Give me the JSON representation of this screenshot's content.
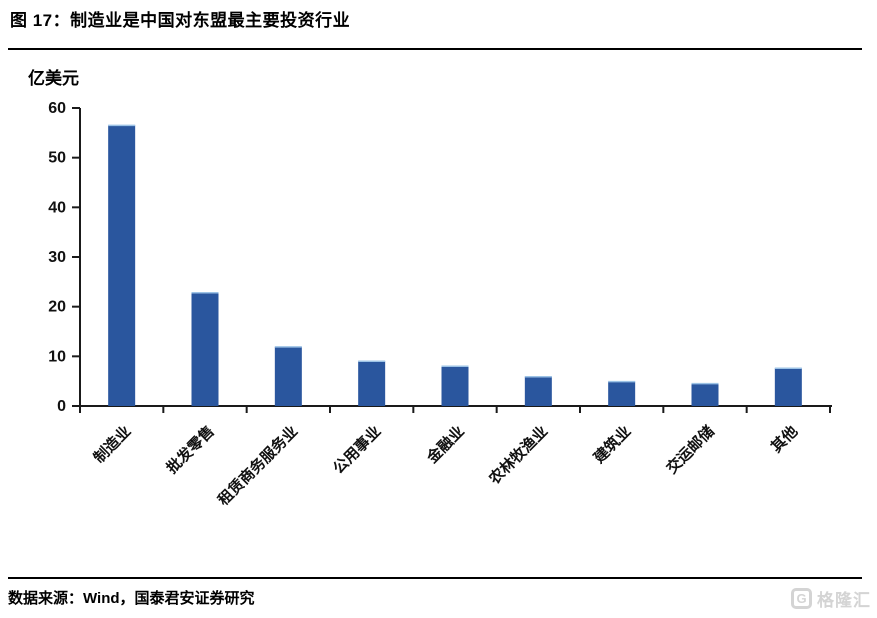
{
  "page": {
    "title": "图 17：制造业是中国对东盟最主要投资行业",
    "source_note": "数据来源：Wind，国泰君安证券研究",
    "watermark": {
      "logo_letter": "G",
      "text": "格隆汇"
    }
  },
  "chart_data": {
    "type": "bar",
    "title": "图 17：制造业是中国对东盟最主要投资行业",
    "unit_label": "亿美元",
    "categories": [
      "制造业",
      "批发零售",
      "租赁商务服务业",
      "公用事业",
      "金融业",
      "农林牧渔业",
      "建筑业",
      "交运邮储",
      "其他"
    ],
    "values": [
      56.5,
      22.8,
      11.9,
      9.0,
      8.0,
      5.9,
      4.9,
      4.5,
      7.6
    ],
    "xlabel": "",
    "ylabel": "亿美元",
    "ylim": [
      0,
      60
    ],
    "yticks": [
      0,
      10,
      20,
      30,
      40,
      50,
      60
    ],
    "grid": false,
    "legend": false,
    "bar_color": "#2A569E",
    "axis_color": "#1A1A1A",
    "text_color": "#111111"
  }
}
